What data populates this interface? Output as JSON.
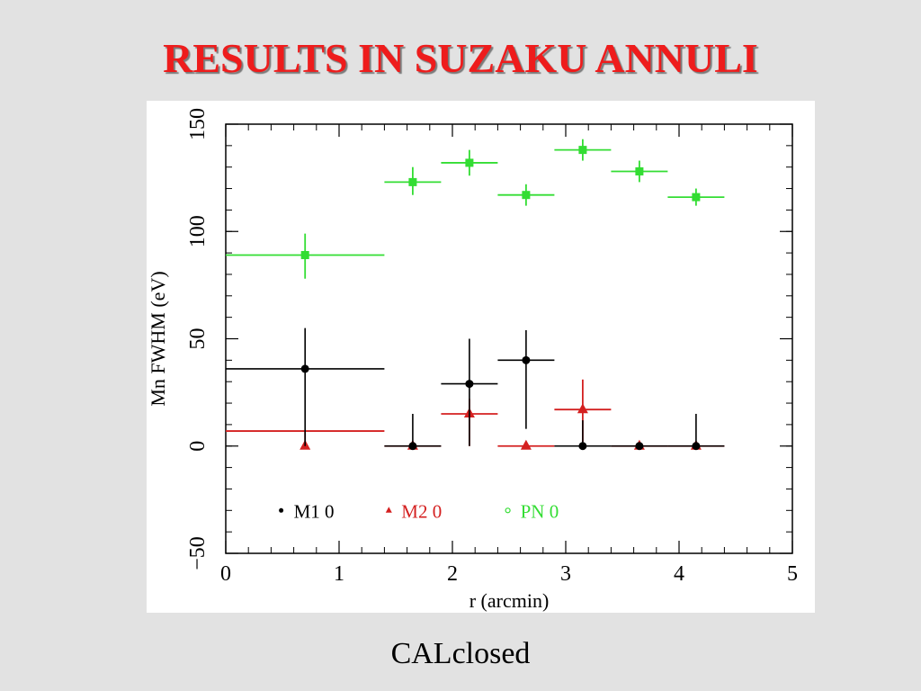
{
  "slide": {
    "title": "RESULTS IN SUZAKU ANNULI",
    "caption": "CALclosed"
  },
  "chart_data": {
    "type": "scatter",
    "xlabel": "r (arcmin)",
    "ylabel": "Mn FWHM (eV)",
    "xlim": [
      0,
      5
    ],
    "ylim": [
      -50,
      150
    ],
    "x_ticks": [
      "0",
      "1",
      "2",
      "3",
      "4",
      "5"
    ],
    "y_ticks": [
      "−50",
      "0",
      "50",
      "100",
      "150"
    ],
    "grid": false,
    "legend_position": "bottom-left",
    "series": [
      {
        "name": "M1 0",
        "color": "#000000",
        "marker": "circle",
        "points": [
          {
            "x": 0.7,
            "x_low": 0.0,
            "x_high": 1.4,
            "y": 36,
            "y_low": 0,
            "y_high": 55
          },
          {
            "x": 1.65,
            "x_low": 1.4,
            "x_high": 1.9,
            "y": 0,
            "y_low": 0,
            "y_high": 15
          },
          {
            "x": 2.15,
            "x_low": 1.9,
            "x_high": 2.4,
            "y": 29,
            "y_low": 0,
            "y_high": 50
          },
          {
            "x": 2.65,
            "x_low": 2.4,
            "x_high": 2.9,
            "y": 40,
            "y_low": 8,
            "y_high": 54
          },
          {
            "x": 3.15,
            "x_low": 2.9,
            "x_high": 3.4,
            "y": 0,
            "y_low": 0,
            "y_high": 12
          },
          {
            "x": 3.65,
            "x_low": 3.4,
            "x_high": 3.9,
            "y": 0,
            "y_low": 0,
            "y_high": 1
          },
          {
            "x": 4.15,
            "x_low": 3.9,
            "x_high": 4.4,
            "y": 0,
            "y_low": 0,
            "y_high": 15
          }
        ]
      },
      {
        "name": "M2 0",
        "color": "#d42020",
        "marker": "triangle",
        "points": [
          {
            "x": 0.7,
            "x_low": 0.0,
            "x_high": 1.4,
            "y": 0,
            "y_low": 0,
            "y_high": 7,
            "bar_y": 7
          },
          {
            "x": 1.65,
            "x_low": 1.4,
            "x_high": 1.9,
            "y": 0,
            "y_low": 0,
            "y_high": 1
          },
          {
            "x": 2.15,
            "x_low": 1.9,
            "x_high": 2.4,
            "y": 15,
            "y_low": 0,
            "y_high": 22
          },
          {
            "x": 2.65,
            "x_low": 2.4,
            "x_high": 2.9,
            "y": 0,
            "y_low": 0,
            "y_high": 1
          },
          {
            "x": 3.15,
            "x_low": 2.9,
            "x_high": 3.4,
            "y": 17,
            "y_low": 2,
            "y_high": 31
          },
          {
            "x": 3.65,
            "x_low": 3.4,
            "x_high": 3.9,
            "y": 0,
            "y_low": 0,
            "y_high": 1
          },
          {
            "x": 4.15,
            "x_low": 3.9,
            "x_high": 4.4,
            "y": 0,
            "y_low": 0,
            "y_high": 1
          }
        ]
      },
      {
        "name": "PN 0",
        "color": "#33dd33",
        "marker": "square",
        "points": [
          {
            "x": 0.7,
            "x_low": 0.0,
            "x_high": 1.4,
            "y": 89,
            "y_low": 78,
            "y_high": 99
          },
          {
            "x": 1.65,
            "x_low": 1.4,
            "x_high": 1.9,
            "y": 123,
            "y_low": 117,
            "y_high": 130
          },
          {
            "x": 2.15,
            "x_low": 1.9,
            "x_high": 2.4,
            "y": 132,
            "y_low": 126,
            "y_high": 138
          },
          {
            "x": 2.65,
            "x_low": 2.4,
            "x_high": 2.9,
            "y": 117,
            "y_low": 112,
            "y_high": 122
          },
          {
            "x": 3.15,
            "x_low": 2.9,
            "x_high": 3.4,
            "y": 138,
            "y_low": 133,
            "y_high": 143
          },
          {
            "x": 3.65,
            "x_low": 3.4,
            "x_high": 3.9,
            "y": 128,
            "y_low": 123,
            "y_high": 133
          },
          {
            "x": 4.15,
            "x_low": 3.9,
            "x_high": 4.4,
            "y": 116,
            "y_low": 112,
            "y_high": 120
          }
        ]
      }
    ]
  }
}
